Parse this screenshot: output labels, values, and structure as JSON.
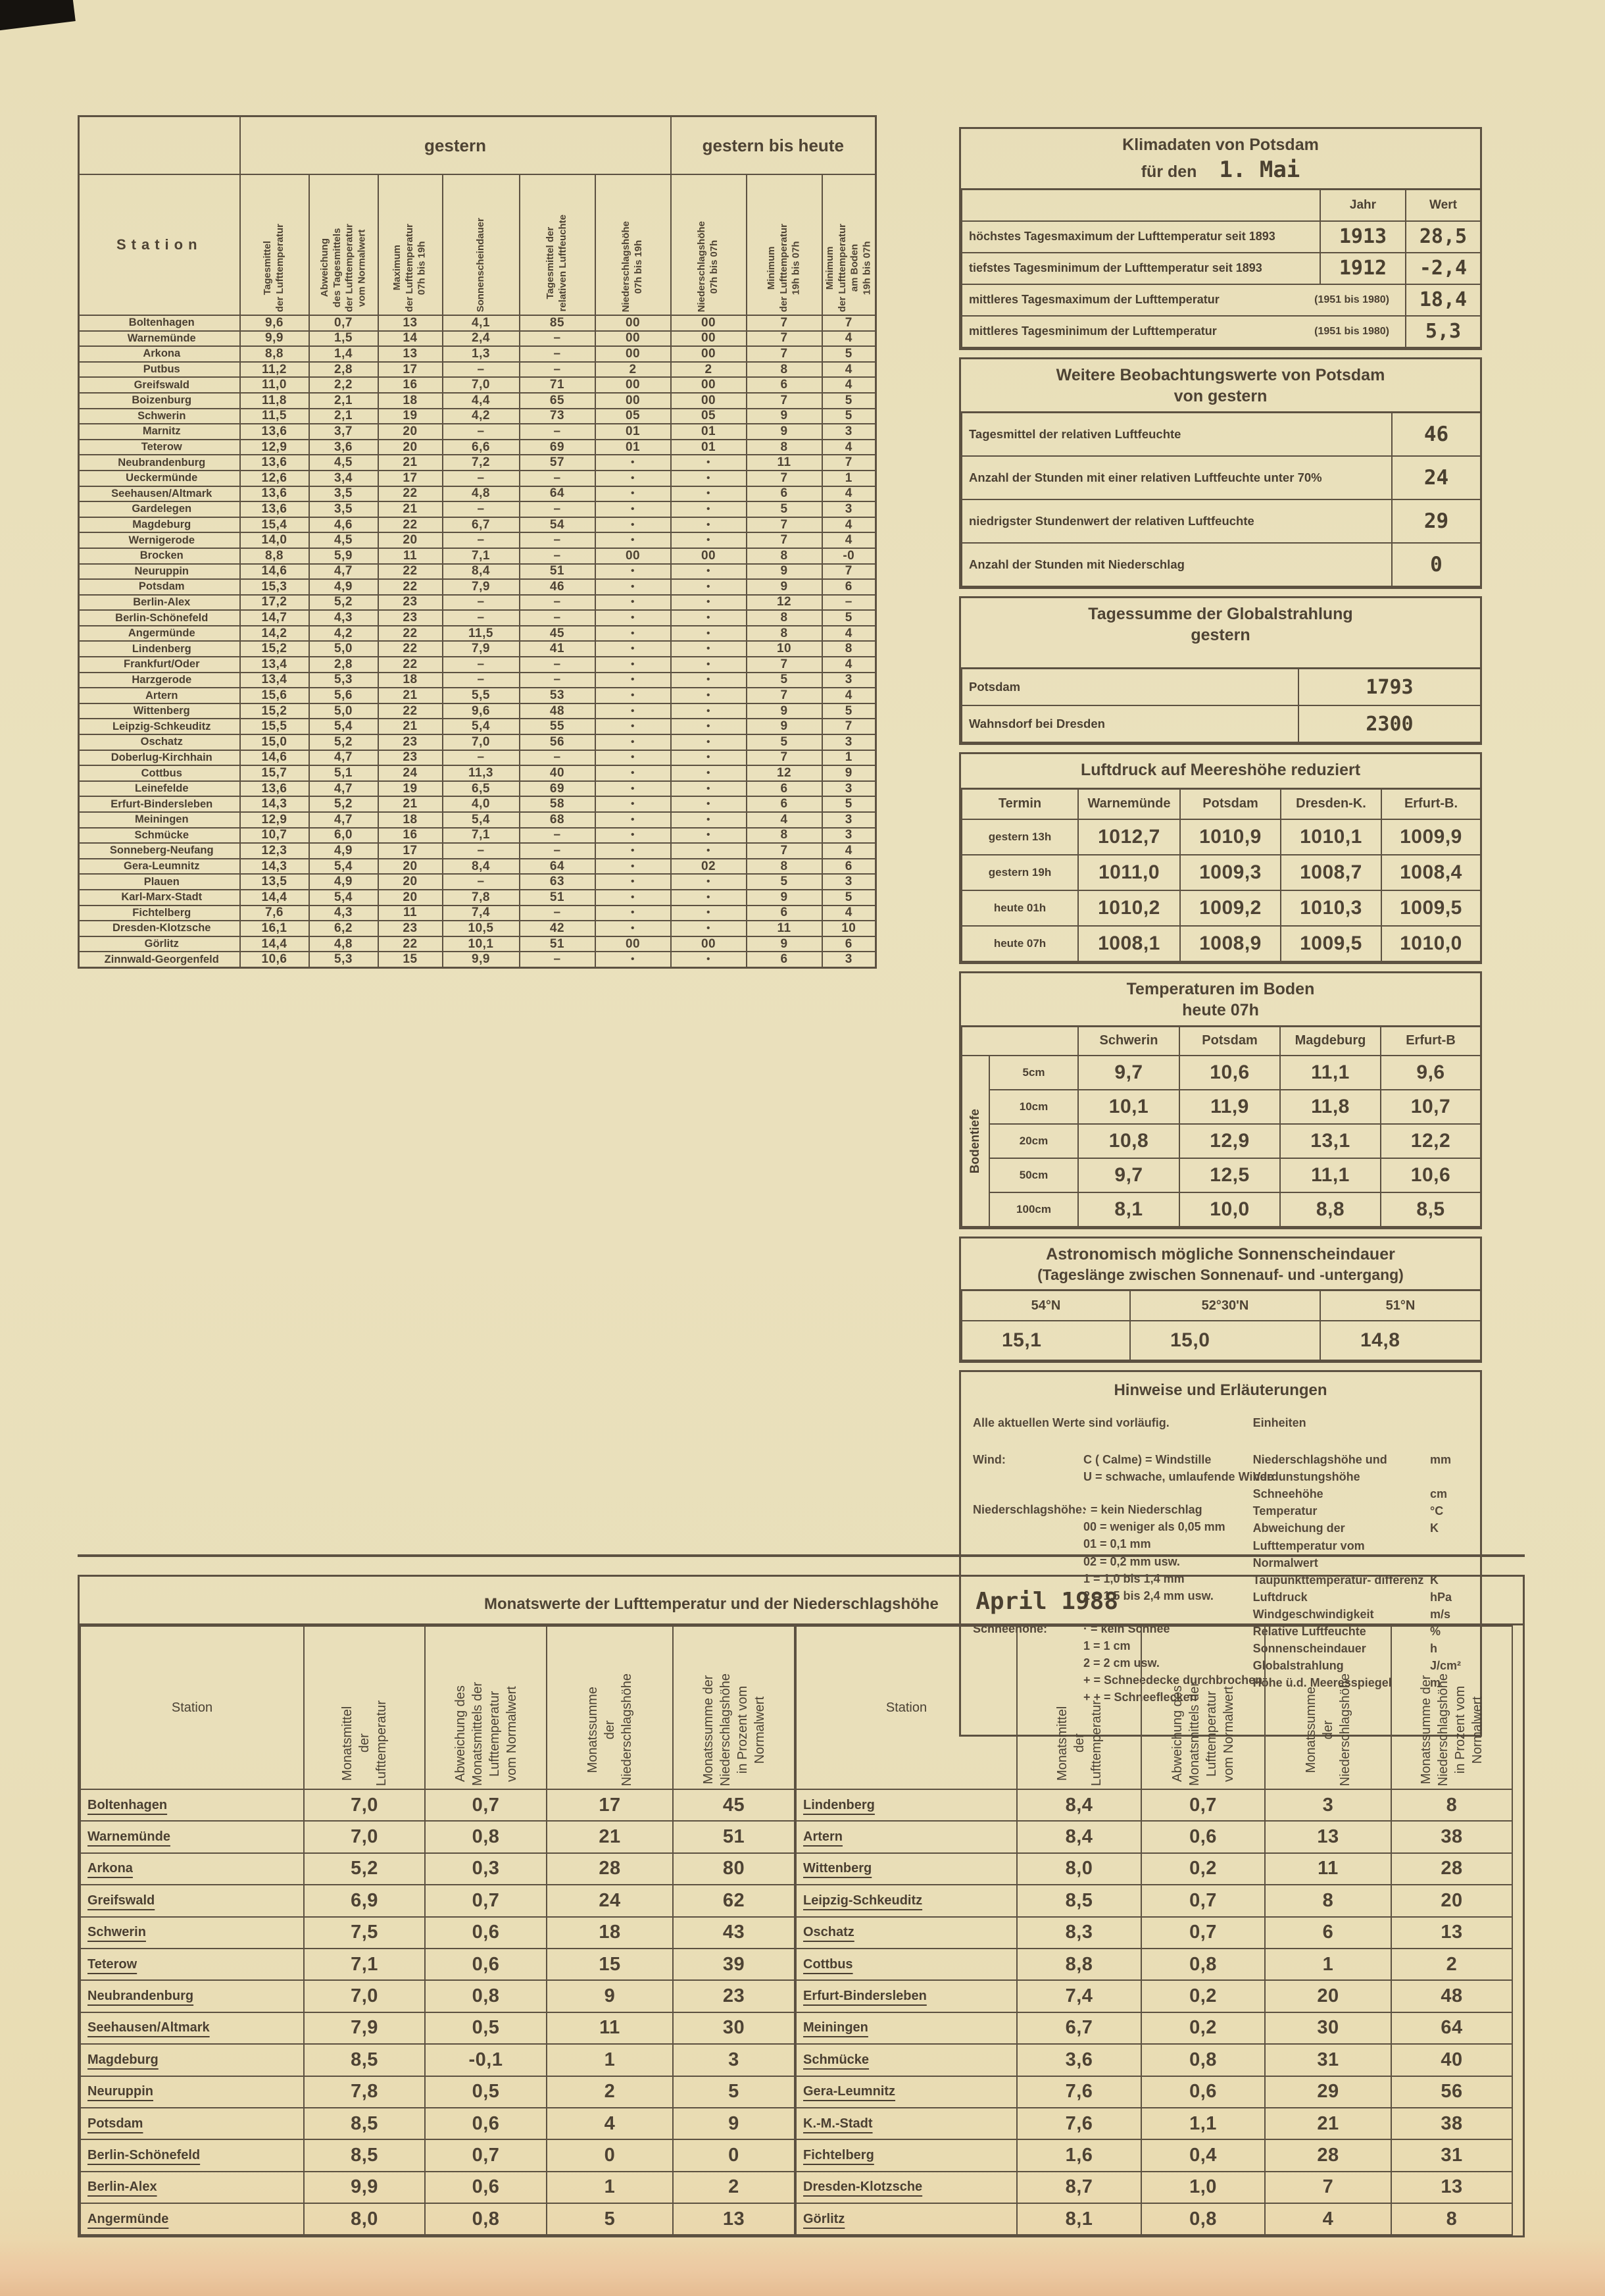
{
  "colors": {
    "paper": "#eae1bd",
    "ink": "#4c4134",
    "line": "#5c5141",
    "stamp": "#4e4334",
    "scan_strip": "#ecc9a2"
  },
  "main_table": {
    "group_left": "gestern",
    "group_right": "gestern bis heute",
    "station_header": "Station",
    "columns": [
      "Tagesmittel\nder Lufttemperatur",
      "Abweichung\ndes Tagesmittels\nder Lufttemperatur\nvom Normalwert",
      "Maximum\nder Lufttemperatur\n07h bis 19h",
      "Sonnenscheindauer",
      "Tagesmittel der\nrelativen Luftfeuchte",
      "Niederschlagshöhe\n07h bis 19h",
      "Niederschlagshöhe\n07h bis 07h",
      "Minimum\nder Lufttemperatur\n19h bis 07h",
      "Minimum\nder Lufttemperatur\nam Boden\n19h bis 07h"
    ],
    "rows": [
      [
        "Boltenhagen",
        "9,6",
        "0,7",
        "13",
        "4,1",
        "85",
        "00",
        "00",
        "7",
        "7"
      ],
      [
        "Warnemünde",
        "9,9",
        "1,5",
        "14",
        "2,4",
        "–",
        "00",
        "00",
        "7",
        "4"
      ],
      [
        "Arkona",
        "8,8",
        "1,4",
        "13",
        "1,3",
        "–",
        "00",
        "00",
        "7",
        "5"
      ],
      [
        "Putbus",
        "11,2",
        "2,8",
        "17",
        "–",
        "–",
        "2",
        "2",
        "8",
        "4"
      ],
      [
        "Greifswald",
        "11,0",
        "2,2",
        "16",
        "7,0",
        "71",
        "00",
        "00",
        "6",
        "4"
      ],
      [
        "Boizenburg",
        "11,8",
        "2,1",
        "18",
        "4,4",
        "65",
        "00",
        "00",
        "7",
        "5"
      ],
      [
        "Schwerin",
        "11,5",
        "2,1",
        "19",
        "4,2",
        "73",
        "05",
        "05",
        "9",
        "5"
      ],
      [
        "Marnitz",
        "13,6",
        "3,7",
        "20",
        "–",
        "–",
        "01",
        "01",
        "9",
        "3"
      ],
      [
        "Teterow",
        "12,9",
        "3,6",
        "20",
        "6,6",
        "69",
        "01",
        "01",
        "8",
        "4"
      ],
      [
        "Neubrandenburg",
        "13,6",
        "4,5",
        "21",
        "7,2",
        "57",
        "•",
        "•",
        "11",
        "7"
      ],
      [
        "Ueckermünde",
        "12,6",
        "3,4",
        "17",
        "–",
        "–",
        "•",
        "•",
        "7",
        "1"
      ],
      [
        "Seehausen/Altmark",
        "13,6",
        "3,5",
        "22",
        "4,8",
        "64",
        "•",
        "•",
        "6",
        "4"
      ],
      [
        "Gardelegen",
        "13,6",
        "3,5",
        "21",
        "–",
        "–",
        "•",
        "•",
        "5",
        "3"
      ],
      [
        "Magdeburg",
        "15,4",
        "4,6",
        "22",
        "6,7",
        "54",
        "•",
        "•",
        "7",
        "4"
      ],
      [
        "Wernigerode",
        "14,0",
        "4,5",
        "20",
        "–",
        "–",
        "•",
        "•",
        "7",
        "4"
      ],
      [
        "Brocken",
        "8,8",
        "5,9",
        "11",
        "7,1",
        "–",
        "00",
        "00",
        "8",
        "-0"
      ],
      [
        "Neuruppin",
        "14,6",
        "4,7",
        "22",
        "8,4",
        "51",
        "•",
        "•",
        "9",
        "7"
      ],
      [
        "Potsdam",
        "15,3",
        "4,9",
        "22",
        "7,9",
        "46",
        "•",
        "•",
        "9",
        "6"
      ],
      [
        "Berlin-Alex",
        "17,2",
        "5,2",
        "23",
        "–",
        "–",
        "•",
        "•",
        "12",
        "–"
      ],
      [
        "Berlin-Schönefeld",
        "14,7",
        "4,3",
        "23",
        "–",
        "–",
        "•",
        "•",
        "8",
        "5"
      ],
      [
        "Angermünde",
        "14,2",
        "4,2",
        "22",
        "11,5",
        "45",
        "•",
        "•",
        "8",
        "4"
      ],
      [
        "Lindenberg",
        "15,2",
        "5,0",
        "22",
        "7,9",
        "41",
        "•",
        "•",
        "10",
        "8"
      ],
      [
        "Frankfurt/Oder",
        "13,4",
        "2,8",
        "22",
        "–",
        "–",
        "•",
        "•",
        "7",
        "4"
      ],
      [
        "Harzgerode",
        "13,4",
        "5,3",
        "18",
        "–",
        "–",
        "•",
        "•",
        "5",
        "3"
      ],
      [
        "Artern",
        "15,6",
        "5,6",
        "21",
        "5,5",
        "53",
        "•",
        "•",
        "7",
        "4"
      ],
      [
        "Wittenberg",
        "15,2",
        "5,0",
        "22",
        "9,6",
        "48",
        "•",
        "•",
        "9",
        "5"
      ],
      [
        "Leipzig-Schkeuditz",
        "15,5",
        "5,4",
        "21",
        "5,4",
        "55",
        "•",
        "•",
        "9",
        "7"
      ],
      [
        "Oschatz",
        "15,0",
        "5,2",
        "23",
        "7,0",
        "56",
        "•",
        "•",
        "5",
        "3"
      ],
      [
        "Doberlug-Kirchhain",
        "14,6",
        "4,7",
        "23",
        "–",
        "–",
        "•",
        "•",
        "7",
        "1"
      ],
      [
        "Cottbus",
        "15,7",
        "5,1",
        "24",
        "11,3",
        "40",
        "•",
        "•",
        "12",
        "9"
      ],
      [
        "Leinefelde",
        "13,6",
        "4,7",
        "19",
        "6,5",
        "69",
        "•",
        "•",
        "6",
        "3"
      ],
      [
        "Erfurt-Bindersleben",
        "14,3",
        "5,2",
        "21",
        "4,0",
        "58",
        "•",
        "•",
        "6",
        "5"
      ],
      [
        "Meiningen",
        "12,9",
        "4,7",
        "18",
        "5,4",
        "68",
        "•",
        "•",
        "4",
        "3"
      ],
      [
        "Schmücke",
        "10,7",
        "6,0",
        "16",
        "7,1",
        "–",
        "•",
        "•",
        "8",
        "3"
      ],
      [
        "Sonneberg-Neufang",
        "12,3",
        "4,9",
        "17",
        "–",
        "–",
        "•",
        "•",
        "7",
        "4"
      ],
      [
        "Gera-Leumnitz",
        "14,3",
        "5,4",
        "20",
        "8,4",
        "64",
        "•",
        "02",
        "8",
        "6"
      ],
      [
        "Plauen",
        "13,5",
        "4,9",
        "20",
        "–",
        "63",
        "•",
        "•",
        "5",
        "3"
      ],
      [
        "Karl-Marx-Stadt",
        "14,4",
        "5,4",
        "20",
        "7,8",
        "51",
        "•",
        "•",
        "9",
        "5"
      ],
      [
        "Fichtelberg",
        "7,6",
        "4,3",
        "11",
        "7,4",
        "–",
        "•",
        "•",
        "6",
        "4"
      ],
      [
        "Dresden-Klotzsche",
        "16,1",
        "6,2",
        "23",
        "10,5",
        "42",
        "•",
        "•",
        "11",
        "10"
      ],
      [
        "Görlitz",
        "14,4",
        "4,8",
        "22",
        "10,1",
        "51",
        "00",
        "00",
        "9",
        "6"
      ],
      [
        "Zinnwald-Georgenfeld",
        "10,6",
        "5,3",
        "15",
        "9,9",
        "–",
        "•",
        "•",
        "6",
        "3"
      ]
    ]
  },
  "klimadaten": {
    "title": "Klimadaten von Potsdam",
    "subtitle_prefix": "für den",
    "date": "1. Mai",
    "jahr_label": "Jahr",
    "wert_label": "Wert",
    "rows": [
      {
        "label": "höchstes Tagesmaximum der Lufttemperatur seit 1893",
        "jahr": "1913",
        "wert": "28,5"
      },
      {
        "label": "tiefstes Tagesminimum der Lufttemperatur seit 1893",
        "jahr": "1912",
        "wert": "-2,4"
      },
      {
        "label": "mittleres Tagesmaximum der Lufttemperatur",
        "period": "(1951 bis 1980)",
        "wert": "18,4"
      },
      {
        "label": "mittleres Tagesminimum der Lufttemperatur",
        "period": "(1951 bis 1980)",
        "wert": "5,3"
      }
    ]
  },
  "beobachtungen": {
    "title": "Weitere Beobachtungswerte von Potsdam",
    "subtitle": "von gestern",
    "rows": [
      {
        "label": "Tagesmittel der relativen Luftfeuchte",
        "value": "46"
      },
      {
        "label": "Anzahl der Stunden mit einer relativen Luftfeuchte unter 70%",
        "value": "24"
      },
      {
        "label": "niedrigster Stundenwert der relativen Luftfeuchte",
        "value": "29"
      },
      {
        "label": "Anzahl der Stunden mit Niederschlag",
        "value": "0"
      }
    ]
  },
  "globalstrahlung": {
    "title": "Tagessumme der Globalstrahlung",
    "subtitle": "gestern",
    "rows": [
      {
        "label": "Potsdam",
        "value": "1793"
      },
      {
        "label": "Wahnsdorf bei Dresden",
        "value": "2300"
      }
    ]
  },
  "luftdruck": {
    "title": "Luftdruck auf Meereshöhe reduziert",
    "columns": [
      "Termin",
      "Warnemünde",
      "Potsdam",
      "Dresden-K.",
      "Erfurt-B."
    ],
    "rows": [
      {
        "termin": "gestern 13h",
        "values": [
          "1012,7",
          "1010,9",
          "1010,1",
          "1009,9"
        ]
      },
      {
        "termin": "gestern 19h",
        "values": [
          "1011,0",
          "1009,3",
          "1008,7",
          "1008,4"
        ]
      },
      {
        "termin": "heute 01h",
        "values": [
          "1010,2",
          "1009,2",
          "1010,3",
          "1009,5"
        ]
      },
      {
        "termin": "heute 07h",
        "values": [
          "1008,1",
          "1008,9",
          "1009,5",
          "1010,0"
        ]
      }
    ]
  },
  "boden": {
    "title": "Temperaturen im Boden",
    "subtitle": "heute 07h",
    "side_label": "Bodentiefe",
    "columns": [
      "Schwerin",
      "Potsdam",
      "Magdeburg",
      "Erfurt-B"
    ],
    "rows": [
      {
        "depth": "5cm",
        "values": [
          "9,7",
          "10,6",
          "11,1",
          "9,6"
        ]
      },
      {
        "depth": "10cm",
        "values": [
          "10,1",
          "11,9",
          "11,8",
          "10,7"
        ]
      },
      {
        "depth": "20cm",
        "values": [
          "10,8",
          "12,9",
          "13,1",
          "12,2"
        ]
      },
      {
        "depth": "50cm",
        "values": [
          "9,7",
          "12,5",
          "11,1",
          "10,6"
        ]
      },
      {
        "depth": "100cm",
        "values": [
          "8,1",
          "10,0",
          "8,8",
          "8,5"
        ]
      }
    ]
  },
  "sonnenscheindauer": {
    "title": "Astronomisch mögliche Sonnenscheindauer",
    "subtitle": "(Tageslänge zwischen Sonnenauf- und -untergang)",
    "columns": [
      "54°N",
      "52°30'N",
      "51°N"
    ],
    "values": [
      "15,1",
      "15,0",
      "14,8"
    ]
  },
  "hinweise": {
    "title": "Hinweise und Erläuterungen",
    "intro": "Alle aktuellen Werte sind vorläufig.",
    "einheiten_label": "Einheiten",
    "groups": [
      {
        "term": "Wind:",
        "lines": [
          "C ( Calme) = Windstille",
          "U = schwache, umlaufende Winde"
        ]
      },
      {
        "term": "Niederschlagshöhe:",
        "lines": [
          "· = kein Niederschlag",
          "00 = weniger als 0,05 mm",
          "01 = 0,1 mm",
          "02 = 0,2 mm usw.",
          "1 = 1,0 bis 1,4 mm",
          "2 = 1,5 bis 2,4 mm usw."
        ]
      },
      {
        "term": "Schneehöhe:",
        "lines": [
          "· = kein Schnee",
          "1 = 1 cm",
          "2 = 2 cm usw.",
          "+ = Schneedecke durchbrochen",
          "+ + = Schneeflecken"
        ]
      }
    ],
    "einheiten": [
      {
        "label": "Niederschlagshöhe und Verdunstungshöhe",
        "unit": "mm"
      },
      {
        "label": "Schneehöhe",
        "unit": "cm"
      },
      {
        "label": "Temperatur",
        "unit": "°C"
      },
      {
        "label": "Abweichung der Lufttemperatur vom Normalwert",
        "unit": "K"
      },
      {
        "label": "Taupunkttemperatur- differenz",
        "unit": "K"
      },
      {
        "label": "Luftdruck",
        "unit": "hPa"
      },
      {
        "label": "Windgeschwindigkeit",
        "unit": "m/s"
      },
      {
        "label": "Relative Luftfeuchte",
        "unit": "%"
      },
      {
        "label": "Sonnenscheindauer",
        "unit": "h"
      },
      {
        "label": "Globalstrahlung",
        "unit": "J/cm²"
      },
      {
        "label": "Höhe ü.d. Meeresspiegel",
        "unit": "m"
      }
    ]
  },
  "monatswerte": {
    "title": "Monatswerte der Lufttemperatur und der Niederschlagshöhe",
    "month": "April 1988",
    "station_header": "Station",
    "columns": [
      "Monatsmittel\nder\nLufttemperatur",
      "Abweichung des\nMonatsmittels der\nLufttemperatur\nvom Normalwert",
      "Monatssumme\nder\nNiederschlagshöhe",
      "Monatssumme der\nNiederschlagshöhe\nin Prozent vom\nNormalwert"
    ],
    "left_rows": [
      [
        "Boltenhagen",
        "7,0",
        "0,7",
        "17",
        "45"
      ],
      [
        "Warnemünde",
        "7,0",
        "0,8",
        "21",
        "51"
      ],
      [
        "Arkona",
        "5,2",
        "0,3",
        "28",
        "80"
      ],
      [
        "Greifswald",
        "6,9",
        "0,7",
        "24",
        "62"
      ],
      [
        "Schwerin",
        "7,5",
        "0,6",
        "18",
        "43"
      ],
      [
        "Teterow",
        "7,1",
        "0,6",
        "15",
        "39"
      ],
      [
        "Neubrandenburg",
        "7,0",
        "0,8",
        "9",
        "23"
      ],
      [
        "Seehausen/Altmark",
        "7,9",
        "0,5",
        "11",
        "30"
      ],
      [
        "Magdeburg",
        "8,5",
        "-0,1",
        "1",
        "3"
      ],
      [
        "Neuruppin",
        "7,8",
        "0,5",
        "2",
        "5"
      ],
      [
        "Potsdam",
        "8,5",
        "0,6",
        "4",
        "9"
      ],
      [
        "Berlin-Schönefeld",
        "8,5",
        "0,7",
        "0",
        "0"
      ],
      [
        "Berlin-Alex",
        "9,9",
        "0,6",
        "1",
        "2"
      ],
      [
        "Angermünde",
        "8,0",
        "0,8",
        "5",
        "13"
      ]
    ],
    "right_rows": [
      [
        "Lindenberg",
        "8,4",
        "0,7",
        "3",
        "8"
      ],
      [
        "Artern",
        "8,4",
        "0,6",
        "13",
        "38"
      ],
      [
        "Wittenberg",
        "8,0",
        "0,2",
        "11",
        "28"
      ],
      [
        "Leipzig-Schkeuditz",
        "8,5",
        "0,7",
        "8",
        "20"
      ],
      [
        "Oschatz",
        "8,3",
        "0,7",
        "6",
        "13"
      ],
      [
        "Cottbus",
        "8,8",
        "0,8",
        "1",
        "2"
      ],
      [
        "Erfurt-Bindersleben",
        "7,4",
        "0,2",
        "20",
        "48"
      ],
      [
        "Meiningen",
        "6,7",
        "0,2",
        "30",
        "64"
      ],
      [
        "Schmücke",
        "3,6",
        "0,8",
        "31",
        "40"
      ],
      [
        "Gera-Leumnitz",
        "7,6",
        "0,6",
        "29",
        "56"
      ],
      [
        "K.-M.-Stadt",
        "7,6",
        "1,1",
        "21",
        "38"
      ],
      [
        "Fichtelberg",
        "1,6",
        "0,4",
        "28",
        "31"
      ],
      [
        "Dresden-Klotzsche",
        "8,7",
        "1,0",
        "7",
        "13"
      ],
      [
        "Görlitz",
        "8,1",
        "0,8",
        "4",
        "8"
      ]
    ]
  }
}
